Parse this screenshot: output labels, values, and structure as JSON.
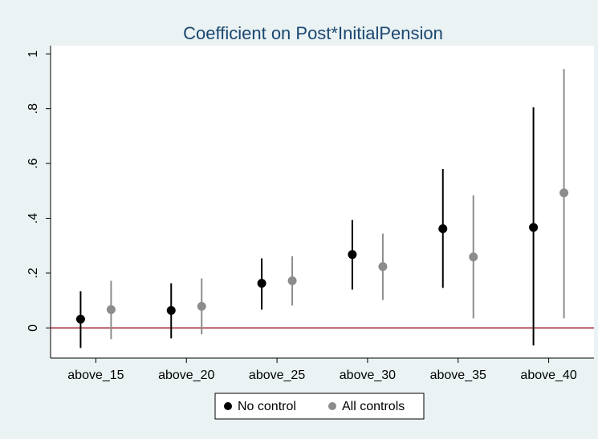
{
  "chart_data": {
    "type": "errorbar",
    "title": "Coefficient on Post*InitialPension",
    "categories": [
      "above_15",
      "above_20",
      "above_25",
      "above_30",
      "above_35",
      "above_40"
    ],
    "series": [
      {
        "name": "No control",
        "color": "#000000",
        "values": [
          0.032,
          0.064,
          0.163,
          0.268,
          0.362,
          0.367
        ],
        "lower": [
          -0.073,
          -0.038,
          0.067,
          0.14,
          0.146,
          -0.064
        ],
        "upper": [
          0.134,
          0.163,
          0.254,
          0.394,
          0.58,
          0.805
        ]
      },
      {
        "name": "All controls",
        "color": "#8c8c8c",
        "values": [
          0.067,
          0.079,
          0.172,
          0.224,
          0.259,
          0.493
        ],
        "lower": [
          -0.041,
          -0.023,
          0.082,
          0.102,
          0.035,
          0.035
        ],
        "upper": [
          0.172,
          0.181,
          0.262,
          0.344,
          0.484,
          0.945
        ]
      }
    ],
    "ylim": [
      -0.11,
      1.03
    ],
    "yticks": [
      0,
      {
        "value": 0.2,
        "label": ".2"
      },
      {
        "value": 0.4,
        "label": ".4"
      },
      {
        "value": 0.6,
        "label": ".6"
      },
      {
        "value": 0.8,
        "label": ".8"
      },
      1
    ],
    "refline": 0,
    "refline_color": "#a0192d",
    "legend": "bottom"
  }
}
